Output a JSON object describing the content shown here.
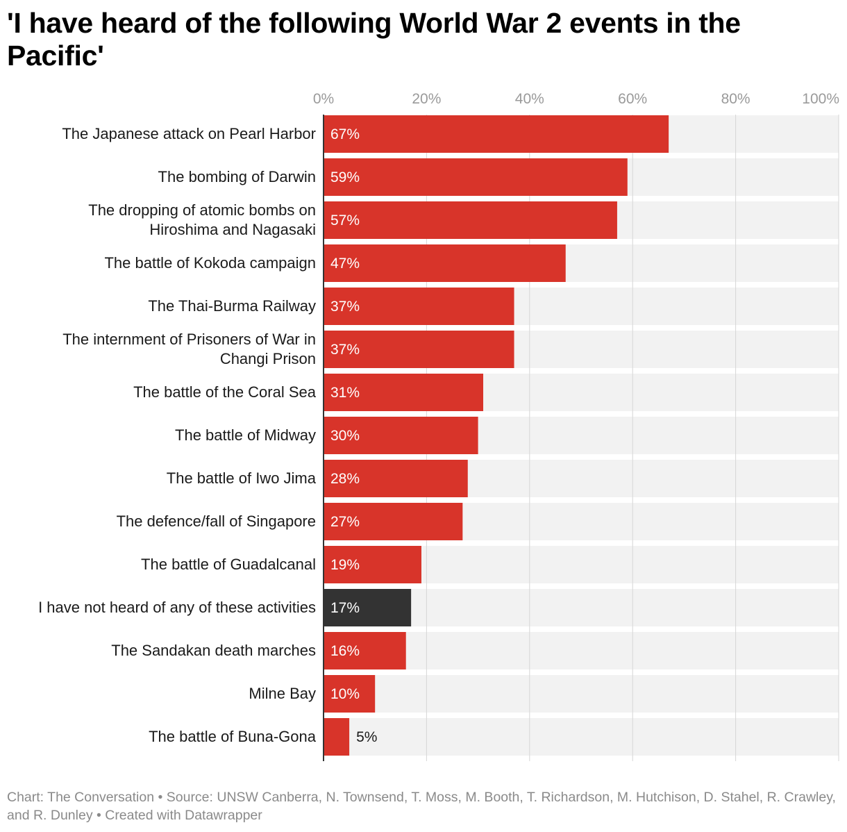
{
  "title": "'I have heard of the following World War 2 events in the Pacific'",
  "footer": "Chart: The Conversation • Source: UNSW Canberra, N. Townsend, T. Moss, M. Booth, T. Richardson, M. Hutchison, D. Stahel, R. Crawley, and R. Dunley • Created with Datawrapper",
  "colors": {
    "bar": "#d8342a",
    "bar_highlight": "#333333",
    "track": "#f2f2f2",
    "grid": "#d6d6d6",
    "axis": "#333333"
  },
  "chart_data": {
    "type": "bar",
    "orientation": "horizontal",
    "title": "'I have heard of the following World War 2 events in the Pacific'",
    "xlim": [
      0,
      100
    ],
    "ticks": [
      0,
      20,
      40,
      60,
      80,
      100
    ],
    "tick_labels": [
      "0%",
      "20%",
      "40%",
      "60%",
      "80%",
      "100%"
    ],
    "categories": [
      "The Japanese attack on Pearl Harbor",
      "The bombing of Darwin",
      "The dropping of atomic bombs on Hiroshima and Nagasaki",
      "The battle of Kokoda campaign",
      "The Thai-Burma Railway",
      "The internment of Prisoners of War in Changi Prison",
      "The battle of the Coral Sea",
      "The battle of Midway",
      "The battle of Iwo Jima",
      "The defence/fall of Singapore",
      "The battle of Guadalcanal",
      "I have not heard of any of these activities",
      "The Sandakan death marches",
      "Milne Bay",
      "The battle of Buna-Gona"
    ],
    "category_lines": [
      [
        "The Japanese attack on Pearl Harbor"
      ],
      [
        "The bombing of Darwin"
      ],
      [
        "The dropping of atomic bombs on",
        "Hiroshima and Nagasaki"
      ],
      [
        "The battle of Kokoda campaign"
      ],
      [
        "The Thai-Burma Railway"
      ],
      [
        "The internment of Prisoners of War in",
        "Changi Prison"
      ],
      [
        "The battle of the Coral Sea"
      ],
      [
        "The battle of Midway"
      ],
      [
        "The battle of Iwo Jima"
      ],
      [
        "The defence/fall of Singapore"
      ],
      [
        "The battle of Guadalcanal"
      ],
      [
        "I have not heard of any of these activities"
      ],
      [
        "The Sandakan death marches"
      ],
      [
        "Milne Bay"
      ],
      [
        "The battle of Buna-Gona"
      ]
    ],
    "values": [
      67,
      59,
      57,
      47,
      37,
      37,
      31,
      30,
      28,
      27,
      19,
      17,
      16,
      10,
      5
    ],
    "value_labels": [
      "67%",
      "59%",
      "57%",
      "47%",
      "37%",
      "37%",
      "31%",
      "30%",
      "28%",
      "27%",
      "19%",
      "17%",
      "16%",
      "10%",
      "5%"
    ],
    "highlight_index": 11
  }
}
